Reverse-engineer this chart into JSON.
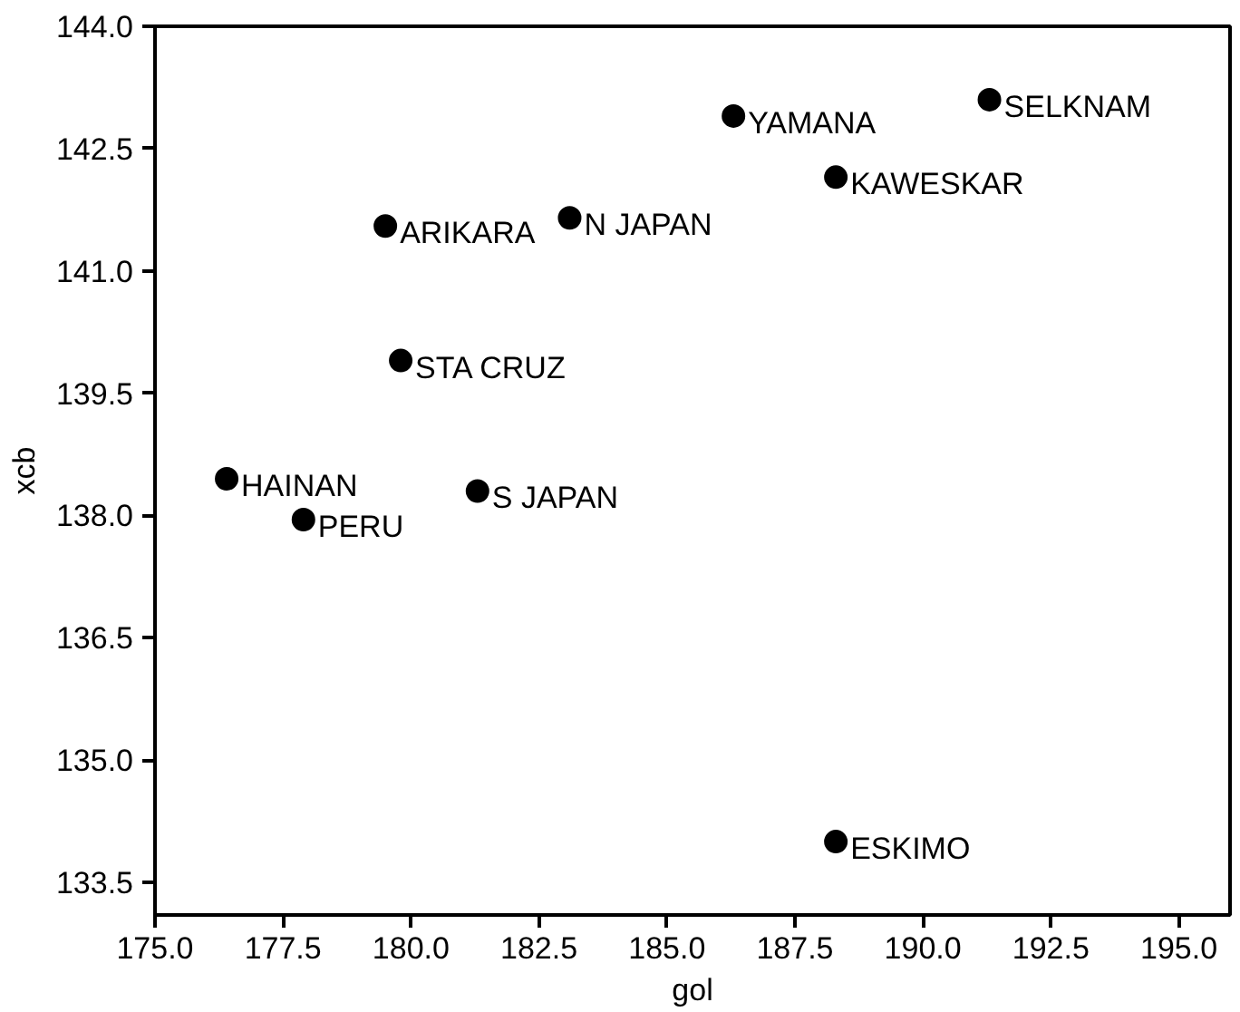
{
  "chart_data": {
    "type": "scatter",
    "xlabel": "gol",
    "ylabel": "xcb",
    "x": [
      191.3,
      186.3,
      188.3,
      183.1,
      179.5,
      179.8,
      176.4,
      181.3,
      177.9,
      188.3
    ],
    "values": [
      143.1,
      142.9,
      142.15,
      141.65,
      141.55,
      139.9,
      138.45,
      138.3,
      137.95,
      134.0
    ],
    "color": "#000000",
    "marker": "circle",
    "grid": false,
    "xlim": [
      175.0,
      196.0
    ],
    "ylim": [
      133.1,
      144.0
    ],
    "xticks": [
      {
        "value": 175,
        "label": "175.0"
      },
      {
        "value": 177.5,
        "label": "177.5"
      },
      {
        "value": 180,
        "label": "180.0"
      },
      {
        "value": 182.5,
        "label": "182.5"
      },
      {
        "value": 185,
        "label": "185.0"
      },
      {
        "value": 187.5,
        "label": "187.5"
      },
      {
        "value": 190,
        "label": "190.0"
      },
      {
        "value": 192.5,
        "label": "192.5"
      },
      {
        "value": 195,
        "label": "195.0"
      }
    ],
    "yticks": [
      {
        "value": 133.5,
        "label": "133.5"
      },
      {
        "value": 135,
        "label": "135.0"
      },
      {
        "value": 136.5,
        "label": "136.5"
      },
      {
        "value": 138,
        "label": "138.0"
      },
      {
        "value": 139.5,
        "label": "139.5"
      },
      {
        "value": 141,
        "label": "141.0"
      },
      {
        "value": 142.5,
        "label": "142.5"
      },
      {
        "value": 144,
        "label": "144.0"
      }
    ],
    "annotations": [
      {
        "text": "SELKNAM",
        "x": 191.3,
        "y": 143.1
      },
      {
        "text": "YAMANA",
        "x": 186.3,
        "y": 142.9
      },
      {
        "text": "KAWESKAR",
        "x": 188.3,
        "y": 142.15
      },
      {
        "text": "N JAPAN",
        "x": 183.1,
        "y": 141.65
      },
      {
        "text": "ARIKARA",
        "x": 179.5,
        "y": 141.55
      },
      {
        "text": "STA CRUZ",
        "x": 179.8,
        "y": 139.9
      },
      {
        "text": "HAINAN",
        "x": 176.4,
        "y": 138.45
      },
      {
        "text": "S JAPAN",
        "x": 181.3,
        "y": 138.3
      },
      {
        "text": "PERU",
        "x": 177.9,
        "y": 137.95
      },
      {
        "text": "ESKIMO",
        "x": 188.3,
        "y": 134.0
      }
    ]
  }
}
